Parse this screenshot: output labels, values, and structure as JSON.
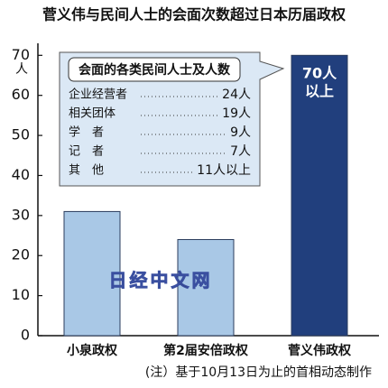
{
  "chart_data": {
    "type": "bar",
    "title": "菅义伟与民间人士的会面次数超过日本历届政权",
    "y_unit": "人",
    "categories": [
      "小泉政权",
      "第2届安倍政权",
      "菅义伟政权"
    ],
    "values": [
      31,
      24,
      70
    ],
    "value_labels": [
      null,
      null,
      "70人以上"
    ],
    "colors": [
      "#a9c8e6",
      "#a9c8e6",
      "#213f7d"
    ],
    "ylim": [
      0,
      73
    ],
    "yticks": [
      0,
      10,
      20,
      30,
      40,
      50,
      60,
      70
    ],
    "grid": false,
    "inset": {
      "title": "会面的各类民间人士及人数",
      "rows": [
        {
          "label": "企业经营者",
          "value": "24人"
        },
        {
          "label": "相关团体",
          "value": "19人"
        },
        {
          "label": "学　者",
          "value": "9人"
        },
        {
          "label": "记　者",
          "value": "7人"
        },
        {
          "label": "其　他",
          "value": "11人以上"
        }
      ]
    },
    "watermark": "日经中文网",
    "note": "(注）基于10月13日为止的首相动态制作"
  }
}
